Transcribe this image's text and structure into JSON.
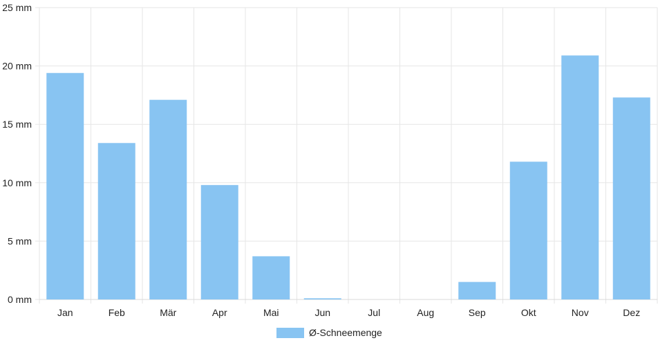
{
  "chart_data": {
    "type": "bar",
    "categories": [
      "Jan",
      "Feb",
      "Mär",
      "Apr",
      "Mai",
      "Jun",
      "Jul",
      "Aug",
      "Sep",
      "Okt",
      "Nov",
      "Dez"
    ],
    "series": [
      {
        "name": "Ø-Schneemenge",
        "values": [
          19.4,
          13.4,
          17.1,
          9.8,
          3.7,
          0.1,
          0,
          0,
          1.5,
          11.8,
          20.9,
          17.3
        ],
        "color": "#88c4f2"
      }
    ],
    "ylim": [
      0,
      25
    ],
    "yticks": [
      0,
      5,
      10,
      15,
      20,
      25
    ],
    "ytick_labels": [
      "0 mm",
      "5 mm",
      "10 mm",
      "15 mm",
      "20 mm",
      "25 mm"
    ],
    "grid": true,
    "legend": "bottom-center"
  }
}
